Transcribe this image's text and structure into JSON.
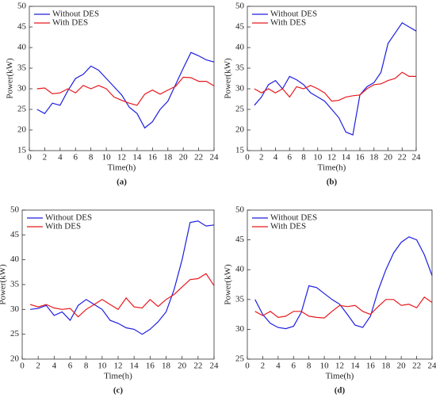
{
  "chart_data": [
    {
      "type": "line",
      "label": "(a)",
      "xlabel": "Time(h)",
      "ylabel": "Power(kW)",
      "xlim": [
        0,
        24
      ],
      "xticks": [
        0,
        2,
        4,
        6,
        8,
        10,
        12,
        14,
        16,
        18,
        20,
        22,
        24
      ],
      "ylim": [
        15,
        50
      ],
      "yticks": [
        15,
        20,
        25,
        30,
        35,
        40,
        45,
        50
      ],
      "legend": "upper left",
      "x": [
        1,
        2,
        3,
        4,
        5,
        6,
        7,
        8,
        9,
        10,
        11,
        12,
        13,
        14,
        15,
        16,
        17,
        18,
        19,
        20,
        21,
        22,
        23,
        24
      ],
      "series": [
        {
          "name": "Without DES",
          "color": "#1f1fe0",
          "values": [
            25,
            24,
            26.5,
            26,
            29.5,
            32.5,
            33.5,
            35.5,
            34.5,
            32.5,
            30.5,
            28.5,
            25.5,
            24,
            20.5,
            22,
            25,
            27,
            31,
            35,
            38.8,
            38,
            37,
            36.5
          ]
        },
        {
          "name": "With DES",
          "color": "#e8191e",
          "values": [
            30,
            30.2,
            28.8,
            29,
            30,
            29,
            30.8,
            30,
            30.8,
            30,
            28,
            27.2,
            26.5,
            26,
            28.7,
            29.7,
            28.7,
            29.7,
            30.6,
            32.8,
            32.7,
            31.8,
            31.8,
            30.7
          ]
        }
      ]
    },
    {
      "type": "line",
      "label": "(b)",
      "xlabel": "Time(h)",
      "ylabel": "Power(kW)",
      "xlim": [
        0,
        24
      ],
      "xticks": [
        0,
        2,
        4,
        6,
        8,
        10,
        12,
        14,
        16,
        18,
        20,
        22,
        24
      ],
      "ylim": [
        15,
        50
      ],
      "yticks": [
        15,
        20,
        25,
        30,
        35,
        40,
        45,
        50
      ],
      "legend": "upper left",
      "x": [
        1,
        2,
        3,
        4,
        5,
        6,
        7,
        8,
        9,
        10,
        11,
        12,
        13,
        14,
        15,
        16,
        17,
        18,
        19,
        20,
        21,
        22,
        23,
        24
      ],
      "series": [
        {
          "name": "Without DES",
          "color": "#1f1fe0",
          "values": [
            26,
            28,
            31,
            32,
            30,
            33,
            32.2,
            31,
            29,
            28,
            27,
            25,
            23,
            19.5,
            18.8,
            28.5,
            30.5,
            31.5,
            34,
            41,
            43.5,
            46,
            45,
            44
          ]
        },
        {
          "name": "With DES",
          "color": "#e8191e",
          "values": [
            30,
            29,
            30,
            29,
            30,
            28,
            30.5,
            30,
            30.8,
            30,
            29,
            27,
            27.2,
            28,
            28.3,
            28.5,
            30,
            31,
            31.2,
            32,
            32.5,
            34,
            33,
            33
          ]
        }
      ]
    },
    {
      "type": "line",
      "label": "(c)",
      "xlabel": "Time(h)",
      "ylabel": "Power(kW)",
      "xlim": [
        0,
        24
      ],
      "xticks": [
        0,
        2,
        4,
        6,
        8,
        10,
        12,
        14,
        16,
        18,
        20,
        22,
        24
      ],
      "ylim": [
        20,
        50
      ],
      "yticks": [
        20,
        25,
        30,
        35,
        40,
        45,
        50
      ],
      "legend": "upper left",
      "x": [
        1,
        2,
        3,
        4,
        5,
        6,
        7,
        8,
        9,
        10,
        11,
        12,
        13,
        14,
        15,
        16,
        17,
        18,
        19,
        20,
        21,
        22,
        23,
        24
      ],
      "series": [
        {
          "name": "Without DES",
          "color": "#1f1fe0",
          "values": [
            30,
            30.2,
            30.8,
            28.8,
            29.5,
            27.8,
            30.8,
            32,
            31,
            30,
            27.8,
            27.2,
            26.3,
            26,
            25,
            26,
            27.5,
            29.5,
            34,
            40,
            47.5,
            47.8,
            46.8,
            47
          ]
        },
        {
          "name": "With DES",
          "color": "#e8191e",
          "values": [
            31,
            30.5,
            31,
            30.3,
            30,
            30.2,
            28.5,
            30,
            31,
            32,
            31,
            30,
            32.3,
            30.5,
            30.3,
            32,
            30.6,
            32,
            33,
            34.5,
            36,
            36.2,
            37.2,
            34.8
          ]
        }
      ]
    },
    {
      "type": "line",
      "label": "(d)",
      "xlabel": "Time(h)",
      "ylabel": "Power(kW)",
      "xlim": [
        0,
        24
      ],
      "xticks": [
        0,
        2,
        4,
        6,
        8,
        10,
        12,
        14,
        16,
        18,
        20,
        22,
        24
      ],
      "ylim": [
        25,
        50
      ],
      "yticks": [
        25,
        30,
        35,
        40,
        45,
        50
      ],
      "legend": "upper left",
      "x": [
        1,
        2,
        3,
        4,
        5,
        6,
        7,
        8,
        9,
        10,
        11,
        12,
        13,
        14,
        15,
        16,
        17,
        18,
        19,
        20,
        21,
        22,
        23,
        24
      ],
      "series": [
        {
          "name": "Without DES",
          "color": "#1f1fe0",
          "values": [
            35,
            32.5,
            31,
            30.3,
            30.1,
            30.5,
            32.8,
            37.3,
            37,
            36,
            35,
            34.2,
            32.5,
            30.7,
            30.3,
            32.2,
            36.5,
            40,
            42.8,
            44.6,
            45.5,
            45,
            42.5,
            39
          ]
        },
        {
          "name": "With DES",
          "color": "#e8191e",
          "values": [
            33,
            32.3,
            33,
            32,
            32.2,
            33,
            33,
            32.2,
            32,
            31.9,
            33,
            34,
            33.8,
            34,
            33,
            32.5,
            33.8,
            35,
            35,
            34,
            34.2,
            33.6,
            35.4,
            34.5
          ]
        }
      ]
    }
  ]
}
